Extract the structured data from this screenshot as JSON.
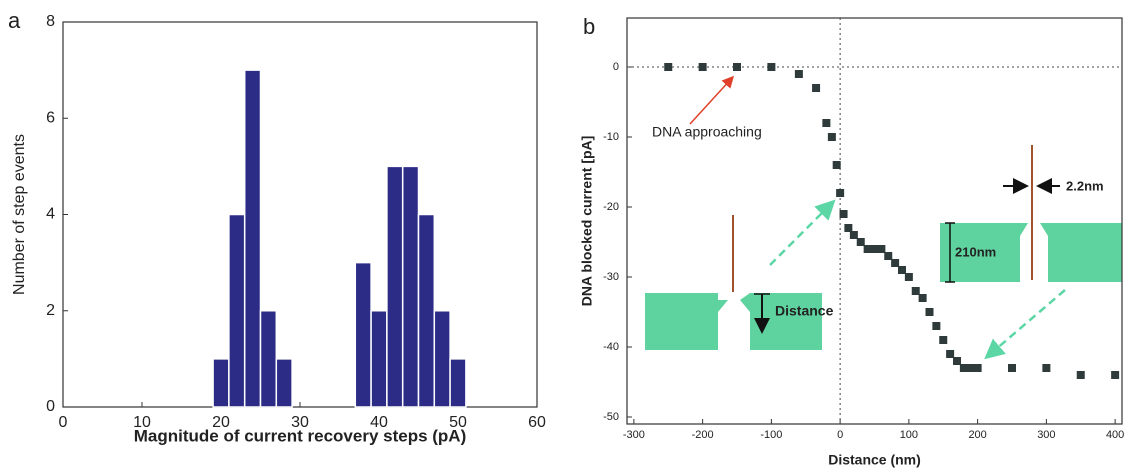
{
  "chart_data": [
    {
      "type": "histogram",
      "panel_label": "a",
      "x_label": "Magnitude of current recovery steps (pA)",
      "y_label": "Number of step events",
      "bins": [
        19,
        21,
        23,
        25,
        27,
        29,
        31,
        33,
        35,
        37,
        39,
        41,
        43,
        45,
        47,
        49,
        51
      ],
      "values": [
        1,
        4,
        7,
        2,
        1,
        0,
        0,
        0,
        0,
        3,
        2,
        5,
        5,
        4,
        2,
        1
      ],
      "color": "#2c2c86",
      "xlim": [
        0,
        60
      ],
      "xticks": [
        0,
        10,
        20,
        30,
        40,
        50,
        60
      ],
      "ylim": [
        0,
        8
      ],
      "yticks": [
        0,
        2,
        4,
        6,
        8
      ],
      "grid": false
    },
    {
      "type": "scatter",
      "panel_label": "b",
      "x_label": "Distance (nm)",
      "y_label": "DNA blocked current [pA]",
      "x": [
        -250,
        -200,
        -150,
        -100,
        -60,
        -35,
        -20,
        -12,
        -5,
        0,
        5,
        12,
        20,
        30,
        40,
        50,
        60,
        70,
        80,
        90,
        100,
        110,
        120,
        130,
        140,
        150,
        160,
        170,
        180,
        190,
        200,
        250,
        300,
        350,
        400
      ],
      "values": [
        0,
        0,
        0,
        0,
        -1,
        -3,
        -8,
        -10,
        -14,
        -18,
        -21,
        -23,
        -24,
        -25,
        -26,
        -26,
        -26,
        -27,
        -28,
        -29,
        -30,
        -32,
        -33,
        -35,
        -37,
        -39,
        -41,
        -42,
        -43,
        -43,
        -43,
        -43,
        -43,
        -44,
        -44
      ],
      "color": "#2f3b3b",
      "xlim": [
        -310,
        410
      ],
      "xticks": [
        -300,
        -200,
        -100,
        0,
        100,
        200,
        300,
        400
      ],
      "ylim": [
        -51,
        7
      ],
      "yticks": [
        0,
        -10,
        -20,
        -30,
        -40,
        -50
      ],
      "reference_lines": {
        "x": 0,
        "y": 0
      },
      "annotations": [
        "DNA approaching",
        "Distance",
        "210nm",
        "2.2nm"
      ],
      "grid": false
    }
  ]
}
